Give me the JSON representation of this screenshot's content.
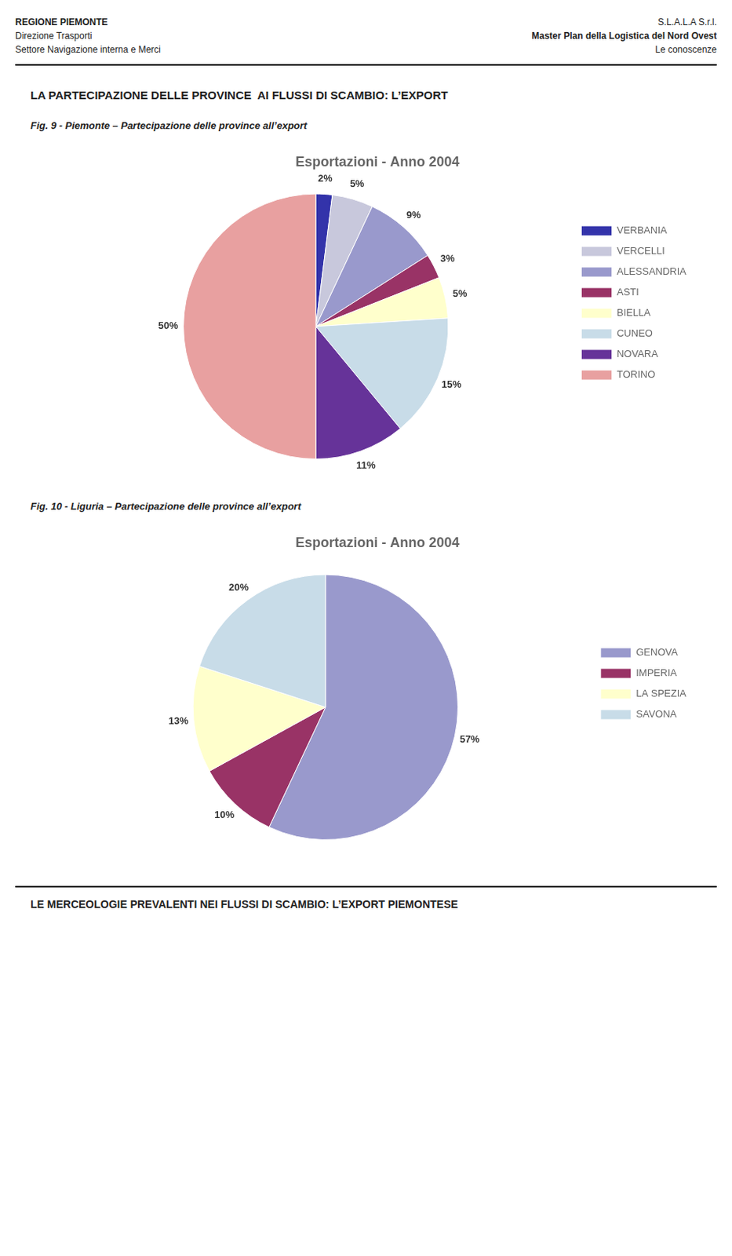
{
  "header_left": [
    "REGIONE PIEMONTE",
    "Direzione Trasporti",
    "Settore Navigazione interna e Merci"
  ],
  "header_right": [
    "S.L.A.L.A S.r.l.",
    "Master Plan della Logistica del Nord Ovest",
    "Le conoscenze"
  ],
  "section_title": "LA PARTECIPAZIONE DELLE PROVINCE  AI FLUSSI DI SCAMBIO: L’EXPORT",
  "footer_title": "LE MERCEOLOGIE PREVALENTI NEI FLUSSI DI SCAMBIO: L’EXPORT PIEMONTESE",
  "chart_data": [
    {
      "type": "pie",
      "caption": "Fig. 9 - Piemonte – Partecipazione delle province all’export",
      "title": "Esportazioni - Anno 2004",
      "categories": [
        "VERBANIA",
        "VERCELLI",
        "ALESSANDRIA",
        "ASTI",
        "BIELLA",
        "CUNEO",
        "NOVARA",
        "TORINO"
      ],
      "values": [
        2,
        5,
        9,
        3,
        5,
        15,
        11,
        50
      ],
      "value_labels": [
        "2%",
        "5%",
        "9%",
        "3%",
        "5%",
        "15%",
        "11%",
        "50%"
      ],
      "colors": [
        "#3333AA",
        "#C8C8DC",
        "#9999CC",
        "#993366",
        "#FFFFCC",
        "#C8DCE8",
        "#663399",
        "#E8A0A0"
      ],
      "data_labels": true,
      "legend": "right"
    },
    {
      "type": "pie",
      "caption": "Fig. 10 - Liguria – Partecipazione delle province all’export",
      "title": "Esportazioni - Anno 2004",
      "categories": [
        "GENOVA",
        "IMPERIA",
        "LA SPEZIA",
        "SAVONA"
      ],
      "values": [
        57,
        10,
        13,
        20
      ],
      "value_labels": [
        "57%",
        "10%",
        "13%",
        "20%"
      ],
      "colors": [
        "#9999CC",
        "#993366",
        "#FFFFCC",
        "#C8DCE8"
      ],
      "data_labels": true,
      "legend": "right"
    }
  ]
}
